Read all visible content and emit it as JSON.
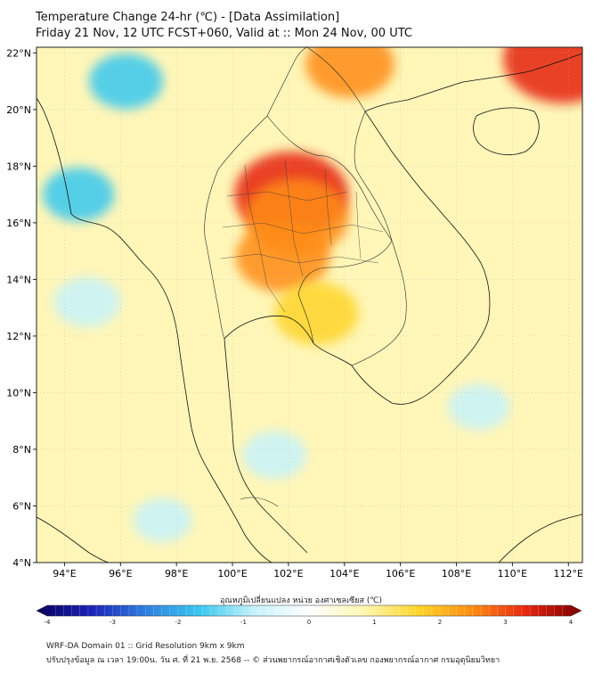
{
  "title": {
    "line1": "Temperature Change 24-hr (℃) - [Data Assimilation]",
    "line2": "Friday 21 Nov, 12 UTC FCST+060, Valid at :: Mon 24 Nov, 00 UTC"
  },
  "axes": {
    "lat_labels": [
      "22°N",
      "20°N",
      "18°N",
      "16°N",
      "14°N",
      "12°N",
      "10°N",
      "8°N",
      "6°N",
      "4°N"
    ],
    "lon_labels": [
      "94°E",
      "96°E",
      "98°E",
      "100°E",
      "102°E",
      "104°E",
      "106°E",
      "108°E",
      "110°E",
      "112°E"
    ],
    "lat_values": [
      22,
      20,
      18,
      16,
      14,
      12,
      10,
      8,
      6,
      4
    ],
    "lon_values": [
      94,
      96,
      98,
      100,
      102,
      104,
      106,
      108,
      110,
      112
    ],
    "lat_range": [
      4,
      22.2
    ],
    "lon_range": [
      93,
      112.5
    ]
  },
  "colorbar": {
    "title": "อุณหภูมิเปลี่ยนแปลง หน่วย องศาเซลเซียส (℃)",
    "ticks": [
      "-4",
      "-3",
      "-2",
      "-1",
      "0",
      "1",
      "2",
      "3",
      "4"
    ],
    "tick_values": [
      -4,
      -3,
      -2,
      -1,
      0,
      1,
      2,
      3,
      4
    ],
    "range": [
      -4,
      4
    ],
    "colors": [
      "#08005a",
      "#1b23b8",
      "#2f7fe0",
      "#39c8f0",
      "#c6f3fb",
      "#ffffff",
      "#fff7b0",
      "#ffd52a",
      "#ff8c12",
      "#e62410",
      "#7a0000"
    ]
  },
  "anomalies": [
    {
      "name": "central-north-thailand-warm",
      "lon": 102.1,
      "lat": 17.0,
      "value": 3.0
    },
    {
      "name": "upper-thailand-warm",
      "lon": 102.3,
      "lat": 16.2,
      "value": 2.6
    },
    {
      "name": "central-thailand-warm",
      "lon": 101.8,
      "lat": 14.8,
      "value": 2.2
    },
    {
      "name": "cambodia-warm",
      "lon": 103.0,
      "lat": 12.8,
      "value": 1.8
    },
    {
      "name": "northeast-corner-warm",
      "lon": 111.8,
      "lat": 21.8,
      "value": 3.2
    },
    {
      "name": "north-vietnam-warm",
      "lon": 104.2,
      "lat": 21.6,
      "value": 2.0
    },
    {
      "name": "myanmar-north-cool",
      "lon": 96.2,
      "lat": 21.0,
      "value": -1.4
    },
    {
      "name": "bay-of-bengal-cool",
      "lon": 94.5,
      "lat": 17.0,
      "value": -1.3
    },
    {
      "name": "andaman-sea-cool",
      "lon": 94.8,
      "lat": 13.2,
      "value": -1.1
    },
    {
      "name": "gulf-of-thailand-cool",
      "lon": 101.5,
      "lat": 7.8,
      "value": -1.0
    },
    {
      "name": "south-china-sea-cool",
      "lon": 108.8,
      "lat": 9.5,
      "value": -0.9
    },
    {
      "name": "malay-sea-cool",
      "lon": 97.5,
      "lat": 5.5,
      "value": -0.8
    }
  ],
  "footer": {
    "line1": "WRF-DA Domain 01 :: Grid Resolution 9km x 9km",
    "line2": "ปรับปรุงข้อมูล ณ เวลา 19:00น. วัน ศ. ที่ 21 พ.ย. 2568 -- © ส่วนพยากรณ์อากาศเชิงตัวเลข กองพยากรณ์อากาศ กรมอุตุนิยมวิทยา"
  }
}
